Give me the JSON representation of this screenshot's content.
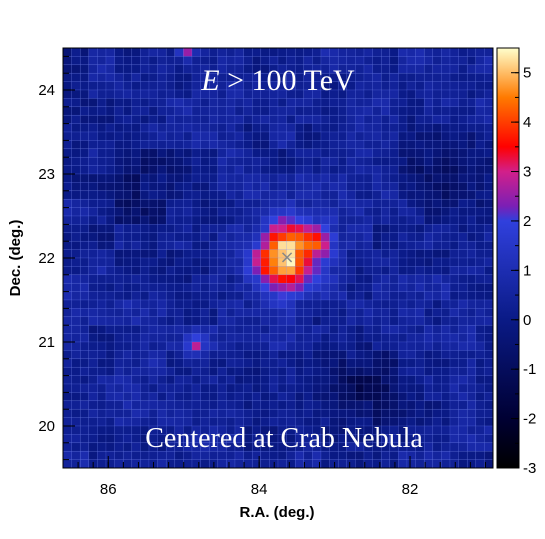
{
  "chart_data": {
    "type": "heatmap",
    "title": "",
    "annotations": {
      "energy_symbol": "E",
      "energy_cut": " > 100 TeV",
      "caption": "Centered at Crab Nebula"
    },
    "xlabel": "R.A. (deg.)",
    "ylabel": "Dec. (deg.)",
    "x_ticks": [
      "86",
      "84",
      "82"
    ],
    "y_ticks": [
      "20",
      "21",
      "22",
      "23",
      "24"
    ],
    "xlim": [
      86.6,
      80.9
    ],
    "ylim": [
      19.5,
      24.5
    ],
    "x_direction": "decreasing",
    "source_marker": {
      "ra": 83.63,
      "dec": 22.01,
      "symbol": "×"
    },
    "colorbar": {
      "range": [
        -3,
        5.5
      ],
      "ticks": [
        "5",
        "4",
        "3",
        "2",
        "1",
        "0",
        "-1",
        "-2",
        "-3"
      ],
      "stops": [
        {
          "value": -3.0,
          "color": "#000000"
        },
        {
          "value": -2.0,
          "color": "#000033"
        },
        {
          "value": 0.0,
          "color": "#0a1a86"
        },
        {
          "value": 2.0,
          "color": "#3040dd"
        },
        {
          "value": 2.3,
          "color": "#7b1fb5"
        },
        {
          "value": 3.0,
          "color": "#d21f8a"
        },
        {
          "value": 3.5,
          "color": "#ff0000"
        },
        {
          "value": 4.5,
          "color": "#ff7a00"
        },
        {
          "value": 5.5,
          "color": "#ffffcc"
        }
      ]
    },
    "significance_map": {
      "background_level": 0.3,
      "sources": [
        {
          "ra": 83.63,
          "dec": 22.01,
          "peak": 5.4,
          "sigma_deg": 0.3
        }
      ],
      "warm_spots": [
        {
          "ra": 84.95,
          "dec": 24.5,
          "peak": 2.6,
          "sigma_deg": 0.08
        },
        {
          "ra": 84.85,
          "dec": 20.95,
          "peak": 2.0,
          "sigma_deg": 0.1
        },
        {
          "ra": 83.15,
          "dec": 22.2,
          "peak": 1.8,
          "sigma_deg": 0.15
        }
      ],
      "cold_spots": [
        {
          "ra": 82.6,
          "dec": 20.4,
          "depth": -1.3,
          "sigma_deg": 0.35
        },
        {
          "ra": 81.5,
          "dec": 22.9,
          "depth": -1.0,
          "sigma_deg": 0.4
        },
        {
          "ra": 85.6,
          "dec": 22.8,
          "depth": -0.8,
          "sigma_deg": 0.4
        }
      ]
    }
  }
}
